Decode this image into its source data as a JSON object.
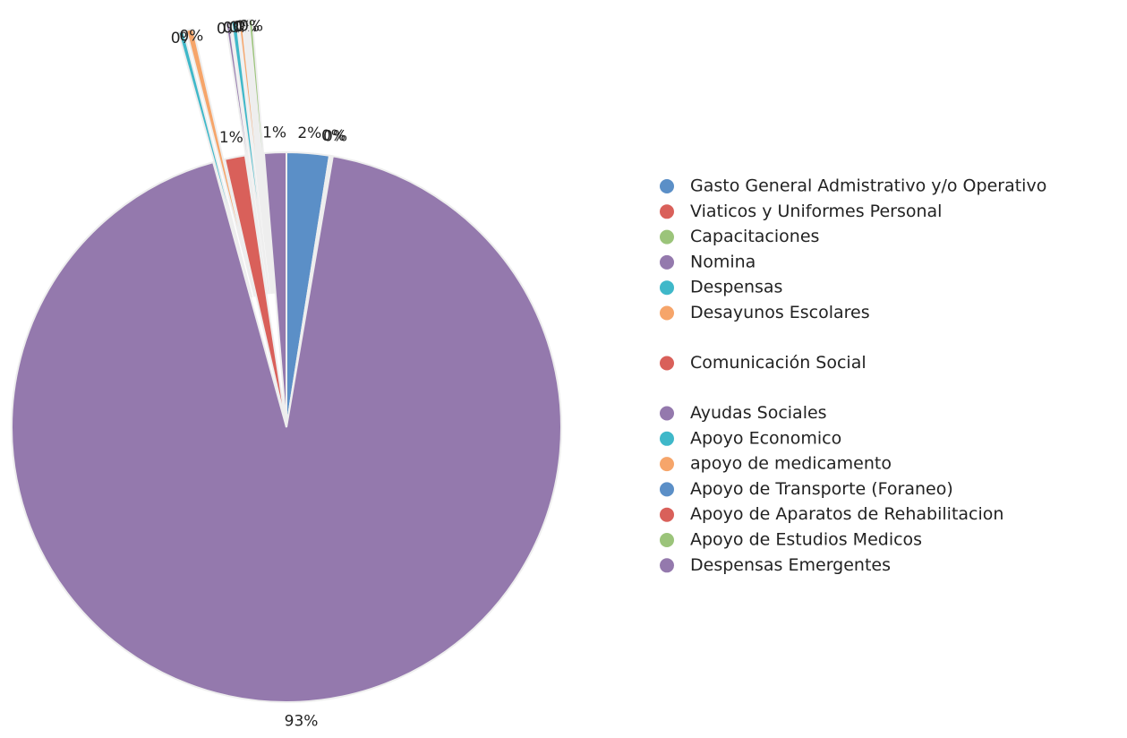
{
  "chart_data": {
    "type": "pie",
    "categories": [
      "Gasto General Admistrativo y/o Operativo",
      "Viaticos y Uniformes Personal",
      "Capacitaciones",
      "Nomina",
      "Despensas",
      "Desayunos Escolares",
      "Comunicación Social",
      "Ayudas Sociales",
      "Apoyo Economico",
      "apoyo de medicamento",
      "Apoyo de Transporte (Foraneo)",
      "Apoyo de Aparatos de Rehabilitacion",
      "Apoyo de Estudios Medicos",
      "Despensas Emergentes"
    ],
    "values": [
      2.5,
      0.1,
      0.1,
      93,
      0.3,
      0.4,
      1.2,
      0.2,
      0.3,
      0.2,
      0.1,
      0.1,
      0.2,
      1.3
    ],
    "value_labels": [
      "2%",
      "0%",
      "0%",
      "93%",
      "0%",
      "0%",
      "1%",
      "0%",
      "0%",
      "0%",
      "0%",
      "0%",
      "0%",
      "1%"
    ],
    "colors": [
      "#5b8fc7",
      "#d9605a",
      "#9bc47a",
      "#9479ad",
      "#3fb8c9",
      "#f6a56a",
      "#d9605a",
      "#9479ad",
      "#3fb8c9",
      "#f6a56a",
      "#5b8fc7",
      "#d9605a",
      "#9bc47a",
      "#9479ad"
    ],
    "legend": "right"
  }
}
